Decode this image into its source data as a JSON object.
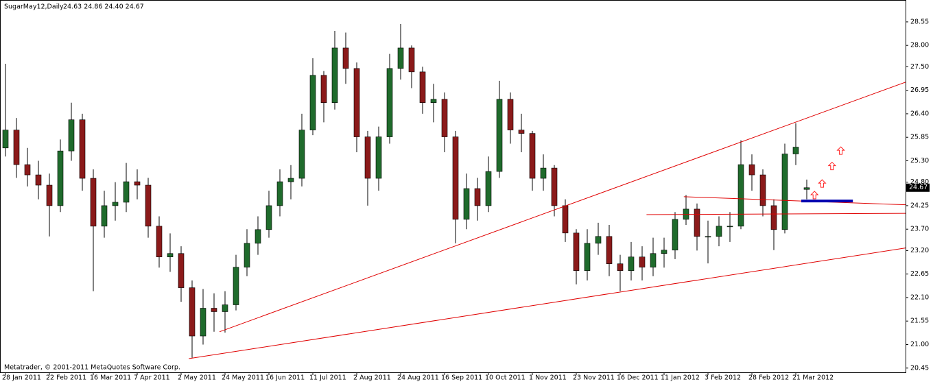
{
  "chart_data": {
    "type": "candlestick",
    "title": "SugarMay12,Daily",
    "header_ohlc": "24.63 24.86 24.40 24.67",
    "footer": "Metatrader, © 2001-2011 MetaQuotes Software Corp.",
    "bull_color": "#1f6b2c",
    "bear_color": "#8b1a1a",
    "categories": [
      "28 Jan 2011",
      null,
      null,
      null,
      "22 Feb 2011",
      null,
      null,
      null,
      "16 Mar 2011",
      null,
      null,
      null,
      "7 Apr 2011",
      null,
      null,
      null,
      "2 May 2011",
      null,
      null,
      null,
      "24 May 2011",
      null,
      null,
      null,
      "16 Jun 2011",
      null,
      null,
      null,
      "11 Jul 2011",
      null,
      null,
      null,
      "2 Aug 2011",
      null,
      null,
      null,
      "24 Aug 2011",
      null,
      null,
      null,
      "16 Sep 2011",
      null,
      null,
      null,
      "10 Oct 2011",
      null,
      null,
      null,
      "1 Nov 2011",
      null,
      null,
      null,
      "23 Nov 2011",
      null,
      null,
      null,
      "16 Dec 2011",
      null,
      null,
      null,
      "11 Jan 2012",
      null,
      null,
      null,
      "3 Feb 2012",
      null,
      null,
      null,
      "28 Feb 2012",
      null,
      null,
      null,
      "21 Mar 2012",
      null
    ],
    "open": [
      25.6,
      26.02,
      25.21,
      24.97,
      24.73,
      24.25,
      25.53,
      26.26,
      24.89,
      23.77,
      24.25,
      24.33,
      24.81,
      24.73,
      23.77,
      23.05,
      23.13,
      22.33,
      21.2,
      21.85,
      21.77,
      21.93,
      22.81,
      23.37,
      23.69,
      24.25,
      24.81,
      24.89,
      26.02,
      27.3,
      26.66,
      27.94,
      27.46,
      25.86,
      24.89,
      25.86,
      27.46,
      27.94,
      27.38,
      26.66,
      26.74,
      25.86,
      23.93,
      24.65,
      24.25,
      25.05,
      26.74,
      26.02,
      25.94,
      24.89,
      25.13,
      24.25,
      23.61,
      22.73,
      23.37,
      23.53,
      22.89,
      22.73,
      23.05,
      22.81,
      23.13,
      23.21,
      23.93,
      24.17,
      23.53,
      23.53,
      23.77,
      23.77,
      25.21,
      24.97,
      24.25,
      23.69,
      25.46,
      24.63
    ],
    "high": [
      27.57,
      26.3,
      25.6,
      25.3,
      25.0,
      25.8,
      26.66,
      26.4,
      25.1,
      24.6,
      24.8,
      25.25,
      25.1,
      24.9,
      24.0,
      23.6,
      23.3,
      22.5,
      22.3,
      22.2,
      22.25,
      23.1,
      23.7,
      24.0,
      24.6,
      25.1,
      25.2,
      26.4,
      27.7,
      27.4,
      28.34,
      28.3,
      27.6,
      26.0,
      26.1,
      27.8,
      28.5,
      28.0,
      27.5,
      27.1,
      26.9,
      26.0,
      25.0,
      24.9,
      25.4,
      27.17,
      26.9,
      26.4,
      26.0,
      25.45,
      25.2,
      24.4,
      23.7,
      23.7,
      23.85,
      23.8,
      23.1,
      23.4,
      23.3,
      23.5,
      23.5,
      24.1,
      24.5,
      24.3,
      23.9,
      24.0,
      24.1,
      25.78,
      25.45,
      25.1,
      24.4,
      25.7,
      26.18,
      24.86
    ],
    "low": [
      25.4,
      24.9,
      24.7,
      24.4,
      23.53,
      24.1,
      25.3,
      24.6,
      22.25,
      23.5,
      23.9,
      24.1,
      24.4,
      23.5,
      22.8,
      22.7,
      22.0,
      20.69,
      21.0,
      21.3,
      21.28,
      21.8,
      22.6,
      23.1,
      23.5,
      24.0,
      24.4,
      24.7,
      25.9,
      26.2,
      26.5,
      27.1,
      25.5,
      24.25,
      24.6,
      25.7,
      27.2,
      27.0,
      26.4,
      26.2,
      25.5,
      23.37,
      23.7,
      23.9,
      24.1,
      24.9,
      25.7,
      25.5,
      24.6,
      24.6,
      24.0,
      23.4,
      22.41,
      22.5,
      23.1,
      22.6,
      22.25,
      22.5,
      22.5,
      22.6,
      22.8,
      23.0,
      23.8,
      23.2,
      22.9,
      23.3,
      23.4,
      23.7,
      24.6,
      24.0,
      23.21,
      23.6,
      25.2,
      24.4
    ],
    "close": [
      26.02,
      25.21,
      24.97,
      24.73,
      24.25,
      25.53,
      26.26,
      24.89,
      23.77,
      24.25,
      24.33,
      24.81,
      24.73,
      23.77,
      23.05,
      23.13,
      22.33,
      21.2,
      21.85,
      21.77,
      21.93,
      22.81,
      23.37,
      23.69,
      24.25,
      24.81,
      24.89,
      26.02,
      27.3,
      26.66,
      27.94,
      27.46,
      25.86,
      24.89,
      25.86,
      27.46,
      27.94,
      27.38,
      26.66,
      26.74,
      25.86,
      23.93,
      24.65,
      24.25,
      25.05,
      26.74,
      26.02,
      25.94,
      24.89,
      25.13,
      24.25,
      23.61,
      22.73,
      23.37,
      23.53,
      22.89,
      22.73,
      23.05,
      22.81,
      23.13,
      23.21,
      23.93,
      24.17,
      23.53,
      23.53,
      23.77,
      23.77,
      25.21,
      24.97,
      24.25,
      23.69,
      25.46,
      25.62,
      24.67
    ],
    "ylim": [
      20.35,
      29.03
    ],
    "yticks": [
      28.55,
      {
        "value": 28,
        "label": "28.00"
      },
      {
        "value": 27.5,
        "label": "27.50"
      },
      26.95,
      {
        "value": 26.4,
        "label": "26.40"
      },
      25.85,
      {
        "value": 25.3,
        "label": "25.30"
      },
      {
        "value": 24.8,
        "label": "24.80"
      },
      24.25,
      {
        "value": 23.7,
        "label": "23.70"
      },
      {
        "value": 23.2,
        "label": "23.20"
      },
      22.65,
      {
        "value": 22.1,
        "label": "22.10"
      },
      21.55,
      {
        "value": 21,
        "label": "21.00"
      },
      20.45
    ],
    "last_price": {
      "value": 24.67,
      "label": "24.67"
    },
    "trendlines": [
      {
        "color": "#e00000",
        "x": [
          19.5,
          82
        ],
        "y": [
          21.3,
          27.14
        ]
      },
      {
        "color": "#e00000",
        "x": [
          16.7,
          82
        ],
        "y": [
          20.67,
          23.26
        ]
      },
      {
        "color": "#e00000",
        "x": [
          61.8,
          82
        ],
        "y": [
          24.46,
          24.27
        ]
      },
      {
        "color": "#e00000",
        "x": [
          58.4,
          82
        ],
        "y": [
          24.04,
          24.07
        ]
      },
      {
        "color": "#0000b0",
        "x": [
          72.5,
          77.2
        ],
        "y": [
          24.36,
          24.36
        ]
      }
    ],
    "arrows": {
      "color": "#ff2020",
      "x": [
        73.7,
        74.4,
        75.3,
        76.1
      ],
      "y": [
        24.49,
        24.76,
        25.17,
        25.53
      ]
    }
  }
}
